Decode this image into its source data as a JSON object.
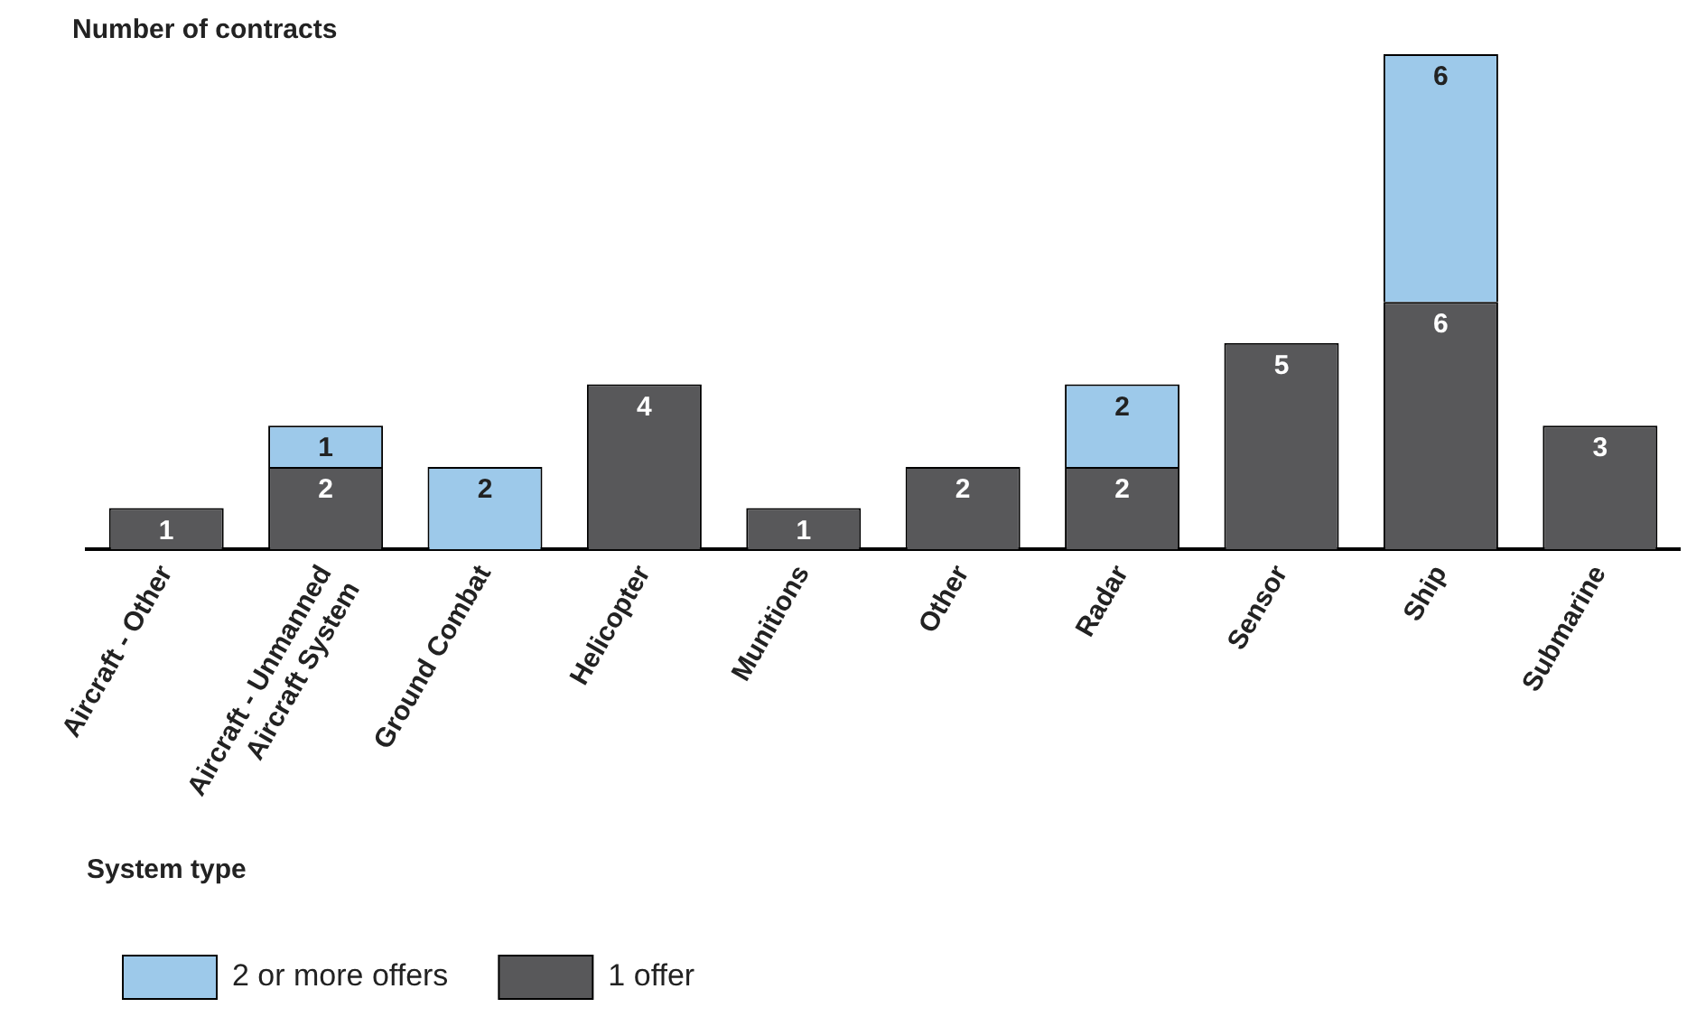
{
  "chart_data": {
    "type": "bar",
    "stacked": true,
    "ylabel": "Number of contracts",
    "xlabel": "System type",
    "categories": [
      "Aircraft - Other",
      "Aircraft - Unmanned\nAircraft System",
      "Ground Combat",
      "Helicopter",
      "Munitions",
      "Other",
      "Radar",
      "Sensor",
      "Ship",
      "Submarine"
    ],
    "series": [
      {
        "name": "1 offer",
        "color": "#58585a",
        "values": [
          1,
          2,
          null,
          4,
          1,
          2,
          2,
          5,
          6,
          3
        ]
      },
      {
        "name": "2 or more offers",
        "color": "#9dc9ea",
        "values": [
          null,
          1,
          2,
          null,
          null,
          null,
          2,
          null,
          6,
          null
        ]
      }
    ],
    "ylim": [
      0,
      12
    ],
    "tick_labels": "x",
    "grid": false,
    "legend": "bottom left",
    "data_labels": true
  }
}
